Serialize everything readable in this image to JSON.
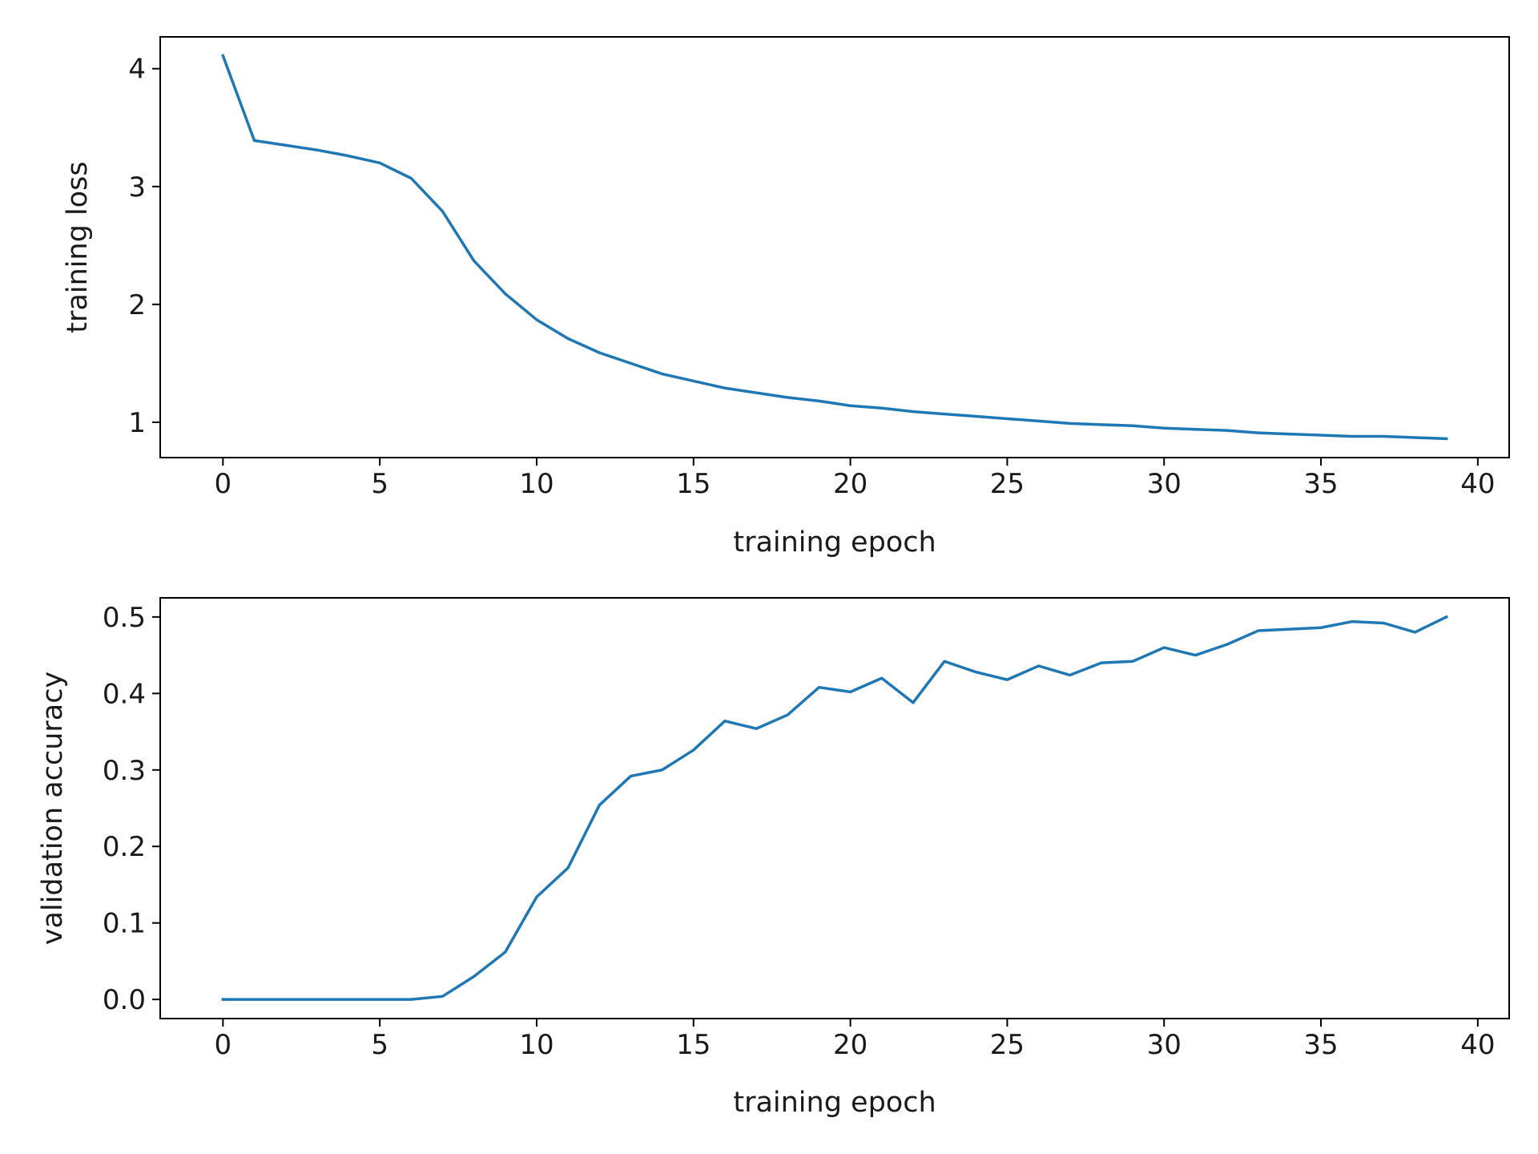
{
  "chart_data": [
    {
      "type": "line",
      "xlabel": "training epoch",
      "ylabel": "training loss",
      "xlim": [
        -2,
        41
      ],
      "ylim": [
        0.7,
        4.27
      ],
      "xticks": [
        0,
        5,
        10,
        15,
        20,
        25,
        30,
        35,
        40
      ],
      "yticks": [
        1,
        2,
        3,
        4
      ],
      "grid": false,
      "color": "#1f77b4",
      "series": [
        {
          "x": [
            0,
            1,
            2,
            3,
            4,
            5,
            6,
            7,
            8,
            9,
            10,
            11,
            12,
            13,
            14,
            15,
            16,
            17,
            18,
            19,
            20,
            21,
            22,
            23,
            24,
            25,
            26,
            27,
            28,
            29,
            30,
            31,
            32,
            33,
            34,
            35,
            36,
            37,
            38,
            39
          ],
          "values": [
            4.11,
            3.39,
            3.35,
            3.31,
            3.26,
            3.2,
            3.07,
            2.79,
            2.37,
            2.09,
            1.87,
            1.71,
            1.59,
            1.5,
            1.41,
            1.35,
            1.29,
            1.25,
            1.21,
            1.18,
            1.14,
            1.12,
            1.09,
            1.07,
            1.05,
            1.03,
            1.01,
            0.99,
            0.98,
            0.97,
            0.95,
            0.94,
            0.93,
            0.91,
            0.9,
            0.89,
            0.88,
            0.88,
            0.87,
            0.86
          ]
        }
      ]
    },
    {
      "type": "line",
      "xlabel": "training epoch",
      "ylabel": "validation accuracy",
      "xlim": [
        -2,
        41
      ],
      "ylim": [
        -0.025,
        0.525
      ],
      "xticks": [
        0,
        5,
        10,
        15,
        20,
        25,
        30,
        35,
        40
      ],
      "yticks": [
        "0.0",
        "0.1",
        "0.2",
        "0.3",
        "0.4",
        "0.5"
      ],
      "grid": false,
      "color": "#1f77b4",
      "series": [
        {
          "x": [
            0,
            1,
            2,
            3,
            4,
            5,
            6,
            7,
            8,
            9,
            10,
            11,
            12,
            13,
            14,
            15,
            16,
            17,
            18,
            19,
            20,
            21,
            22,
            23,
            24,
            25,
            26,
            27,
            28,
            29,
            30,
            31,
            32,
            33,
            34,
            35,
            36,
            37,
            38,
            39
          ],
          "values": [
            0,
            0,
            0,
            0,
            0,
            0,
            0,
            0.004,
            0.03,
            0.062,
            0.134,
            0.172,
            0.254,
            0.292,
            0.3,
            0.326,
            0.364,
            0.354,
            0.372,
            0.408,
            0.402,
            0.42,
            0.388,
            0.442,
            0.428,
            0.418,
            0.436,
            0.424,
            0.44,
            0.442,
            0.46,
            0.45,
            0.464,
            0.482,
            0.484,
            0.486,
            0.494,
            0.492,
            0.48,
            0.5
          ]
        }
      ]
    }
  ]
}
